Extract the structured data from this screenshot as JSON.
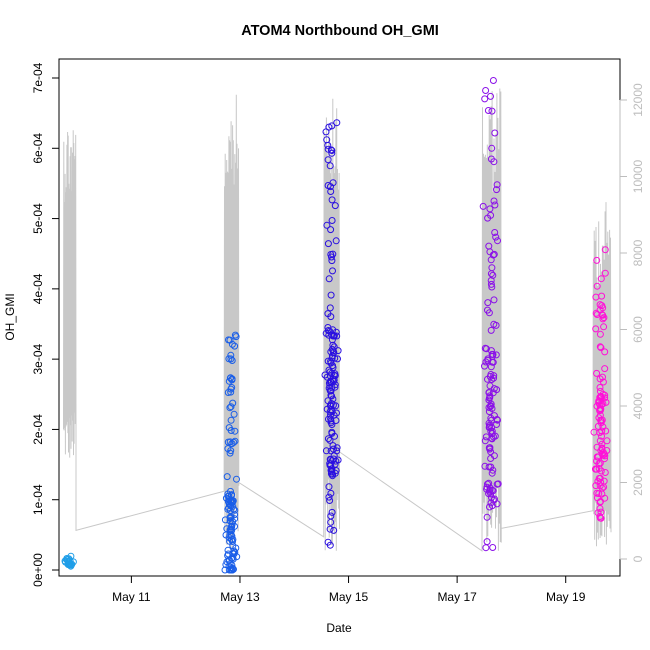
{
  "chart_data": {
    "type": "scatter",
    "title": "ATOM4 Northbound OH_GMI",
    "xlabel": "Date",
    "ylabel": "OH_GMI",
    "xlim": [
      "2016-05-09T16:00",
      "2016-05-20T00:00"
    ],
    "ylim": [
      0,
      0.0007
    ],
    "y2lim": [
      0,
      12000
    ],
    "x_ticks": [
      {
        "date": "2016-05-11",
        "label": "May 11"
      },
      {
        "date": "2016-05-13",
        "label": "May 13"
      },
      {
        "date": "2016-05-15",
        "label": "May 15"
      },
      {
        "date": "2016-05-17",
        "label": "May 17"
      },
      {
        "date": "2016-05-19",
        "label": "May 19"
      }
    ],
    "y_ticks": [
      {
        "value": 0,
        "label": "0e+00"
      },
      {
        "value": 0.0001,
        "label": "1e-04"
      },
      {
        "value": 0.0002,
        "label": "2e-04"
      },
      {
        "value": 0.0003,
        "label": "3e-04"
      },
      {
        "value": 0.0004,
        "label": "4e-04"
      },
      {
        "value": 0.0005,
        "label": "5e-04"
      },
      {
        "value": 0.0006,
        "label": "6e-04"
      },
      {
        "value": 0.0007,
        "label": "7e-04"
      }
    ],
    "y2_ticks": [
      {
        "value": 0,
        "label": "0"
      },
      {
        "value": 2000,
        "label": "2000"
      },
      {
        "value": 4000,
        "label": "4000"
      },
      {
        "value": 6000,
        "label": "6000"
      },
      {
        "value": 8000,
        "label": "8000"
      },
      {
        "value": 10000,
        "label": "10000"
      },
      {
        "value": 12000,
        "label": "12000"
      }
    ],
    "grid": false,
    "colors": {
      "altitude_line": "#c8c8c8",
      "flight1": "#1f9ee8",
      "flight2": "#1a5ee8",
      "flight3": "#2a10e0",
      "flight4": "#8a10e8",
      "flight5": "#ff10d8"
    },
    "flights": [
      {
        "color_key": "flight1",
        "start": "2016-05-09T18:00",
        "end": "2016-05-09T23:00",
        "ymin": 2e-06,
        "ymax": 2e-05,
        "n": 22,
        "base": 1e-05
      },
      {
        "color_key": "flight2",
        "start": "2016-05-12T17:00",
        "end": "2016-05-12T23:00",
        "ymin": 0.0,
        "ymax": 0.00034,
        "n": 120,
        "base": 5e-05
      },
      {
        "color_key": "flight3",
        "start": "2016-05-14T13:00",
        "end": "2016-05-14T20:00",
        "ymin": 3e-05,
        "ymax": 0.00065,
        "n": 150,
        "base": 0.00024
      },
      {
        "color_key": "flight4",
        "start": "2016-05-17T11:00",
        "end": "2016-05-17T19:00",
        "ymin": 2e-05,
        "ymax": 0.0007,
        "n": 130,
        "base": 0.0002
      },
      {
        "color_key": "flight5",
        "start": "2016-05-19T12:00",
        "end": "2016-05-19T19:00",
        "ymin": 5e-05,
        "ymax": 0.00046,
        "n": 110,
        "base": 0.00018
      }
    ],
    "altitude": [
      {
        "start": "2016-05-09T18:00",
        "end": "2016-05-09T23:30",
        "min": 2500,
        "max": 11600,
        "end_alt": 750
      },
      {
        "start": "2016-05-12T17:00",
        "end": "2016-05-12T23:30",
        "min": 200,
        "max": 12200,
        "end_alt": 2000
      },
      {
        "start": "2016-05-14T13:00",
        "end": "2016-05-14T20:00",
        "min": 200,
        "max": 12800,
        "end_alt": 2800
      },
      {
        "start": "2016-05-17T11:00",
        "end": "2016-05-17T19:30",
        "min": 200,
        "max": 12600,
        "end_alt": 800
      },
      {
        "start": "2016-05-19T12:00",
        "end": "2016-05-19T20:00",
        "min": 200,
        "max": 9400,
        "end_alt": 700
      }
    ]
  }
}
